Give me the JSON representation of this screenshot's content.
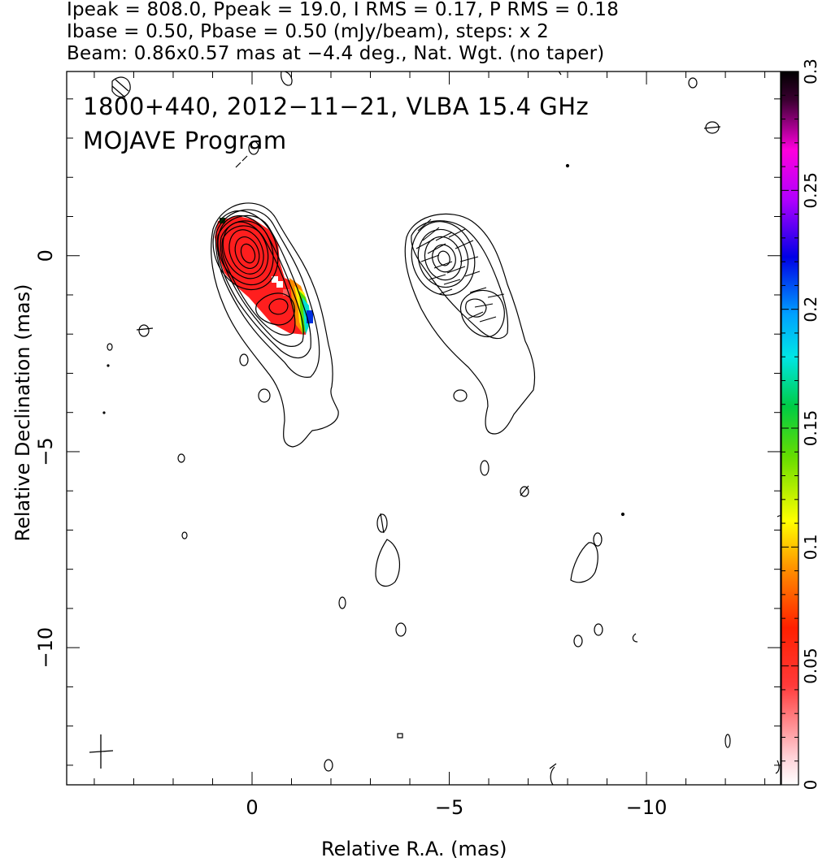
{
  "header": {
    "line1": "Ipeak = 808.0, Ppeak = 19.0, I RMS = 0.17, P RMS = 0.18",
    "line2": "Ibase = 0.50, Pbase = 0.50 (mJy/beam), steps: x 2",
    "line3": "Beam: 0.86x0.57 mas at −4.4 deg., Nat. Wgt. (no taper)"
  },
  "annotations": {
    "source": "1800+440, 2012−11−21, VLBA 15.4 GHz",
    "program": "MOJAVE Program"
  },
  "chart_data": {
    "type": "contour",
    "xlabel": "Relative R.A. (mas)",
    "ylabel": "Relative Declination (mas)",
    "xlim": [
      4.7,
      -13.4
    ],
    "ylim": [
      -13.5,
      4.7
    ],
    "xticks": [
      0,
      -5,
      -10
    ],
    "xtick_labels": [
      "0",
      "−5",
      "−10"
    ],
    "yticks": [
      0,
      -5,
      -10
    ],
    "ytick_labels": [
      "0",
      "−5",
      "−10"
    ],
    "colorbar": {
      "label_values": [
        0,
        0.05,
        0.1,
        0.15,
        0.2,
        0.25,
        0.3
      ],
      "labels": [
        "0",
        "0.05",
        "0.1",
        "0.15",
        "0.2",
        "0.25",
        "0.3"
      ],
      "range": [
        0,
        0.3
      ]
    },
    "contour_levels_mjy": [
      0.5,
      1,
      2,
      4,
      8,
      16,
      32,
      64,
      128,
      256,
      512
    ],
    "beam": {
      "major": 0.86,
      "minor": 0.57,
      "pa_deg": -4.4
    }
  }
}
